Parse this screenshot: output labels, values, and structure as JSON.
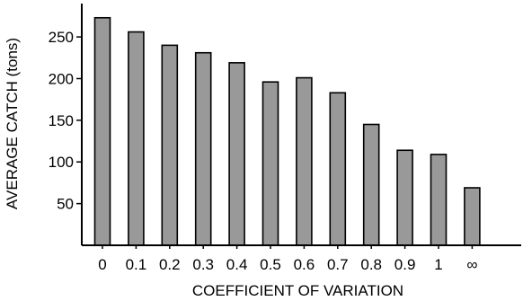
{
  "chart_data": {
    "type": "bar",
    "title": "",
    "xlabel": "COEFFICIENT OF VARIATION",
    "ylabel": "AVERAGE CATCH (tons)",
    "categories": [
      "0",
      "0.1",
      "0.2",
      "0.3",
      "0.4",
      "0.5",
      "0.6",
      "0.7",
      "0.8",
      "0.9",
      "1",
      "∞"
    ],
    "values": [
      273,
      256,
      240,
      231,
      219,
      196,
      201,
      183,
      145,
      114,
      109,
      69
    ],
    "ylim": [
      0,
      290
    ],
    "yticks": [
      50,
      100,
      150,
      200,
      250
    ],
    "grid": false,
    "bar_color": "#999999",
    "edge_color": "#000000"
  }
}
